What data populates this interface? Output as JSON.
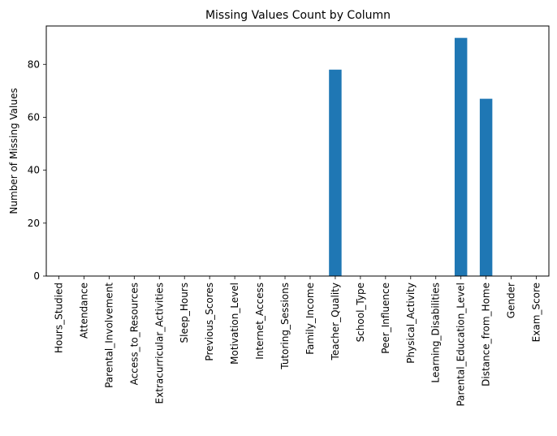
{
  "chart_data": {
    "type": "bar",
    "title": "Missing Values Count by Column",
    "xlabel": "",
    "ylabel": "Number of Missing Values",
    "categories": [
      "Hours_Studied",
      "Attendance",
      "Parental_Involvement",
      "Access_to_Resources",
      "Extracurricular_Activities",
      "Sleep_Hours",
      "Previous_Scores",
      "Motivation_Level",
      "Internet_Access",
      "Tutoring_Sessions",
      "Family_Income",
      "Teacher_Quality",
      "School_Type",
      "Peer_Influence",
      "Physical_Activity",
      "Learning_Disabilities",
      "Parental_Education_Level",
      "Distance_from_Home",
      "Gender",
      "Exam_Score"
    ],
    "values": [
      0,
      0,
      0,
      0,
      0,
      0,
      0,
      0,
      0,
      0,
      0,
      78,
      0,
      0,
      0,
      0,
      90,
      67,
      0,
      0
    ],
    "ylim": [
      0,
      94.5
    ],
    "yticks": [
      0,
      20,
      40,
      60,
      80
    ],
    "bar_color": "#1f77b4",
    "grid": false,
    "legend": "none"
  }
}
